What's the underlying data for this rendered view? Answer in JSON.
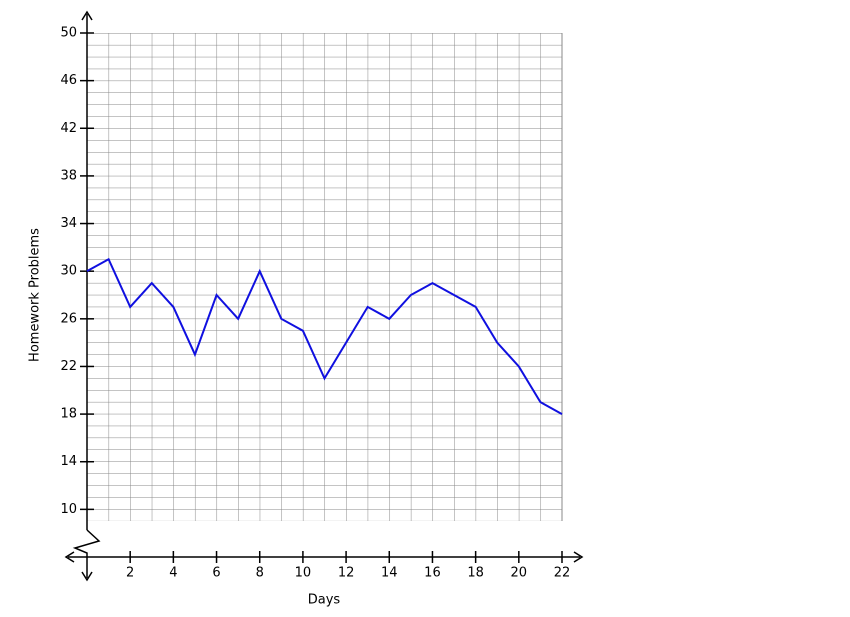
{
  "chart_data": {
    "type": "line",
    "x_label": "Days",
    "y_label": "Homework Problems",
    "x": [
      0,
      1,
      2,
      3,
      4,
      5,
      6,
      7,
      8,
      9,
      10,
      11,
      12,
      13,
      14,
      15,
      16,
      17,
      18,
      19,
      20,
      21,
      22
    ],
    "series": [
      {
        "color": "#1010e0",
        "values": [
          30,
          31,
          27,
          29,
          27,
          23,
          28,
          26,
          30,
          26,
          25,
          21,
          24,
          27,
          26,
          28,
          29,
          28,
          27,
          24,
          22,
          19,
          18
        ]
      }
    ],
    "xlim": [
      0,
      22
    ],
    "ylim": [
      6,
      50
    ],
    "xticks": [
      2,
      4,
      6,
      8,
      10,
      12,
      14,
      16,
      18,
      20,
      22
    ],
    "yticks": [
      10,
      14,
      18,
      22,
      26,
      30,
      34,
      38,
      42,
      46,
      50
    ],
    "grid": true
  }
}
